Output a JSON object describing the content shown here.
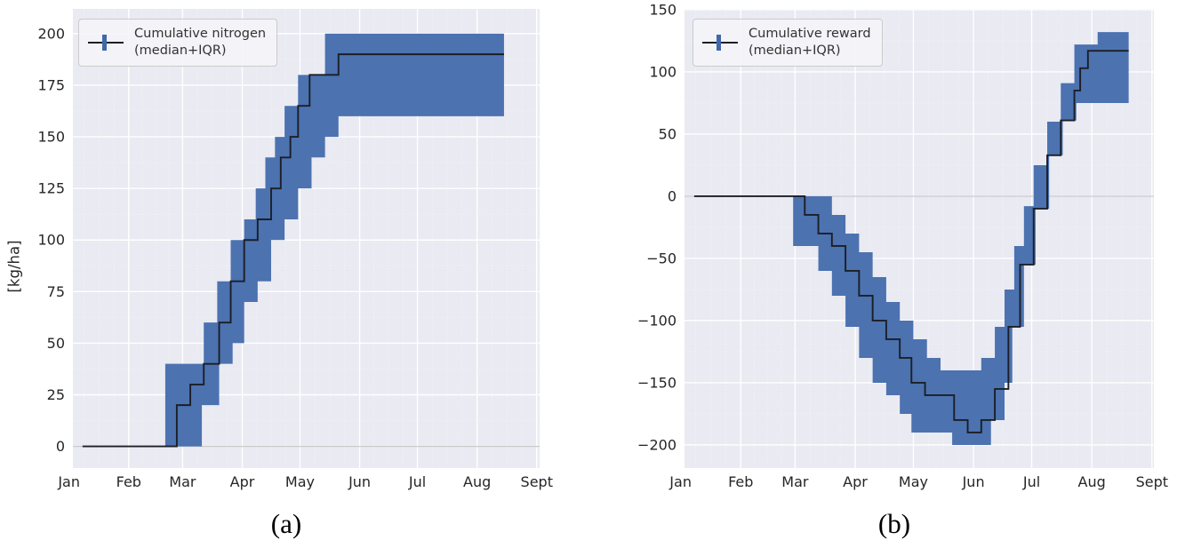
{
  "figure": {
    "type": "two-panel step chart with IQR bands",
    "background": "#ffffff"
  },
  "style": {
    "axes_bg": "#e9eaf2",
    "grid_major": "#ffffff",
    "grid_minor": "#ffffff",
    "band_color": "#4c72b0",
    "median_color": "#1b1f26",
    "zero_line_color": "#c9c9c9",
    "tick_color": "#262626",
    "legend_bg": "#f4f5f9",
    "legend_border": "#cccccc"
  },
  "chart_data": [
    {
      "type": "area",
      "panel": "a",
      "caption": "(a)",
      "legend": {
        "line1": "Cumulative nitrogen",
        "line2": "(median+IQR)"
      },
      "ylabel": "[kg/ha]",
      "x_tick_labels": [
        "Jan",
        "Feb",
        "Mar",
        "Apr",
        "May",
        "Jun",
        "Jul",
        "Aug",
        "Sept"
      ],
      "x_tick_days": [
        1,
        32,
        60,
        91,
        121,
        152,
        182,
        213,
        244
      ],
      "y_ticks": [
        0,
        25,
        50,
        75,
        100,
        125,
        150,
        175,
        200
      ],
      "xlim": [
        3,
        245.5
      ],
      "ylim": [
        -10.5,
        212
      ],
      "grid": true,
      "legend_position": "upper left",
      "units": "kg/ha",
      "x_start_day": 8,
      "x_end_day": 227,
      "series": [
        {
          "name": "median",
          "steps": [
            [
              8,
              0
            ],
            [
              57,
              20
            ],
            [
              64,
              30
            ],
            [
              71,
              40
            ],
            [
              79,
              60
            ],
            [
              85,
              80
            ],
            [
              92,
              100
            ],
            [
              99,
              110
            ],
            [
              106,
              125
            ],
            [
              111,
              140
            ],
            [
              116,
              150
            ],
            [
              120,
              165
            ],
            [
              126,
              180
            ],
            [
              141,
              190
            ]
          ]
        },
        {
          "name": "q25",
          "steps": [
            [
              8,
              0
            ],
            [
              70,
              20
            ],
            [
              79,
              40
            ],
            [
              86,
              50
            ],
            [
              92,
              70
            ],
            [
              99,
              80
            ],
            [
              106,
              100
            ],
            [
              113,
              110
            ],
            [
              120,
              125
            ],
            [
              127,
              140
            ],
            [
              134,
              150
            ],
            [
              141,
              160
            ]
          ]
        },
        {
          "name": "q75",
          "steps": [
            [
              8,
              0
            ],
            [
              51,
              40
            ],
            [
              71,
              60
            ],
            [
              78,
              80
            ],
            [
              85,
              100
            ],
            [
              92,
              110
            ],
            [
              98,
              125
            ],
            [
              103,
              140
            ],
            [
              108,
              150
            ],
            [
              113,
              165
            ],
            [
              120,
              180
            ],
            [
              134,
              200
            ]
          ]
        }
      ]
    },
    {
      "type": "area",
      "panel": "b",
      "caption": "(b)",
      "legend": {
        "line1": "Cumulative reward",
        "line2": "(median+IQR)"
      },
      "ylabel": "",
      "x_tick_labels": [
        "Jan",
        "Feb",
        "Mar",
        "Apr",
        "May",
        "Jun",
        "Jul",
        "Aug",
        "Sept"
      ],
      "x_tick_days": [
        1,
        32,
        60,
        91,
        121,
        152,
        182,
        213,
        244
      ],
      "y_ticks": [
        -200,
        -150,
        -100,
        -50,
        0,
        50,
        100,
        150
      ],
      "xlim": [
        3,
        245
      ],
      "ylim": [
        -218.6,
        150.7
      ],
      "grid": true,
      "legend_position": "upper left",
      "units": "reward",
      "x_start_day": 8,
      "x_end_day": 232,
      "series": [
        {
          "name": "median",
          "steps": [
            [
              8,
              0
            ],
            [
              65,
              -15
            ],
            [
              72,
              -30
            ],
            [
              79,
              -40
            ],
            [
              86,
              -60
            ],
            [
              93,
              -80
            ],
            [
              100,
              -100
            ],
            [
              107,
              -115
            ],
            [
              114,
              -130
            ],
            [
              120,
              -150
            ],
            [
              127,
              -160
            ],
            [
              142,
              -180
            ],
            [
              149,
              -190
            ],
            [
              156,
              -180
            ],
            [
              163,
              -155
            ],
            [
              170,
              -105
            ],
            [
              176,
              -55
            ],
            [
              183,
              -10
            ],
            [
              190,
              33
            ],
            [
              197,
              61
            ],
            [
              204,
              85
            ],
            [
              207,
              103
            ],
            [
              211,
              117
            ]
          ]
        },
        {
          "name": "q25",
          "steps": [
            [
              8,
              0
            ],
            [
              59,
              -40
            ],
            [
              72,
              -60
            ],
            [
              79,
              -80
            ],
            [
              86,
              -105
            ],
            [
              93,
              -130
            ],
            [
              100,
              -150
            ],
            [
              107,
              -160
            ],
            [
              114,
              -175
            ],
            [
              120,
              -190
            ],
            [
              141,
              -200
            ],
            [
              161,
              -180
            ],
            [
              168,
              -150
            ],
            [
              172,
              -105
            ],
            [
              178,
              -55
            ],
            [
              184,
              -10
            ],
            [
              191,
              33
            ],
            [
              198,
              61
            ],
            [
              205,
              75
            ]
          ]
        },
        {
          "name": "q75",
          "steps": [
            [
              8,
              0
            ],
            [
              79,
              -15
            ],
            [
              86,
              -30
            ],
            [
              93,
              -45
            ],
            [
              100,
              -65
            ],
            [
              107,
              -85
            ],
            [
              114,
              -100
            ],
            [
              121,
              -115
            ],
            [
              128,
              -130
            ],
            [
              135,
              -140
            ],
            [
              156,
              -130
            ],
            [
              163,
              -105
            ],
            [
              168,
              -75
            ],
            [
              173,
              -40
            ],
            [
              178,
              -8
            ],
            [
              183,
              25
            ],
            [
              190,
              60
            ],
            [
              197,
              91
            ],
            [
              204,
              122
            ],
            [
              216,
              132
            ]
          ]
        }
      ]
    }
  ]
}
